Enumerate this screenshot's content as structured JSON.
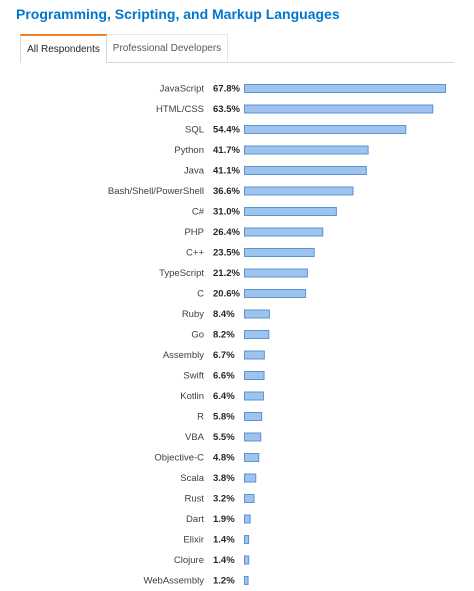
{
  "header": {
    "title": "Programming, Scripting, and Markup Languages"
  },
  "tabs": [
    {
      "label": "All Respondents",
      "active": true
    },
    {
      "label": "Professional Developers",
      "active": false
    }
  ],
  "colors": {
    "title": "#0077cc",
    "bar_fill": "#9ec3ee",
    "bar_stroke": "#5a93d6",
    "tab_accent": "#f48024"
  },
  "chart_data": {
    "type": "bar",
    "orientation": "horizontal",
    "title": "Programming, Scripting, and Markup Languages",
    "xlim": [
      0,
      67.8
    ],
    "value_suffix": "%",
    "categories": [
      "JavaScript",
      "HTML/CSS",
      "SQL",
      "Python",
      "Java",
      "Bash/Shell/PowerShell",
      "C#",
      "PHP",
      "C++",
      "TypeScript",
      "C",
      "Ruby",
      "Go",
      "Assembly",
      "Swift",
      "Kotlin",
      "R",
      "VBA",
      "Objective-C",
      "Scala",
      "Rust",
      "Dart",
      "Elixir",
      "Clojure",
      "WebAssembly"
    ],
    "values": [
      67.8,
      63.5,
      54.4,
      41.7,
      41.1,
      36.6,
      31.0,
      26.4,
      23.5,
      21.2,
      20.6,
      8.4,
      8.2,
      6.7,
      6.6,
      6.4,
      5.8,
      5.5,
      4.8,
      3.8,
      3.2,
      1.9,
      1.4,
      1.4,
      1.2
    ],
    "labels": [
      "67.8%",
      "63.5%",
      "54.4%",
      "41.7%",
      "41.1%",
      "36.6%",
      "31.0%",
      "26.4%",
      "23.5%",
      "21.2%",
      "20.6%",
      "8.4%",
      "8.2%",
      "6.7%",
      "6.6%",
      "6.4%",
      "5.8%",
      "5.5%",
      "4.8%",
      "3.8%",
      "3.2%",
      "1.9%",
      "1.4%",
      "1.4%",
      "1.2%"
    ],
    "grid": false,
    "legend": "none"
  }
}
